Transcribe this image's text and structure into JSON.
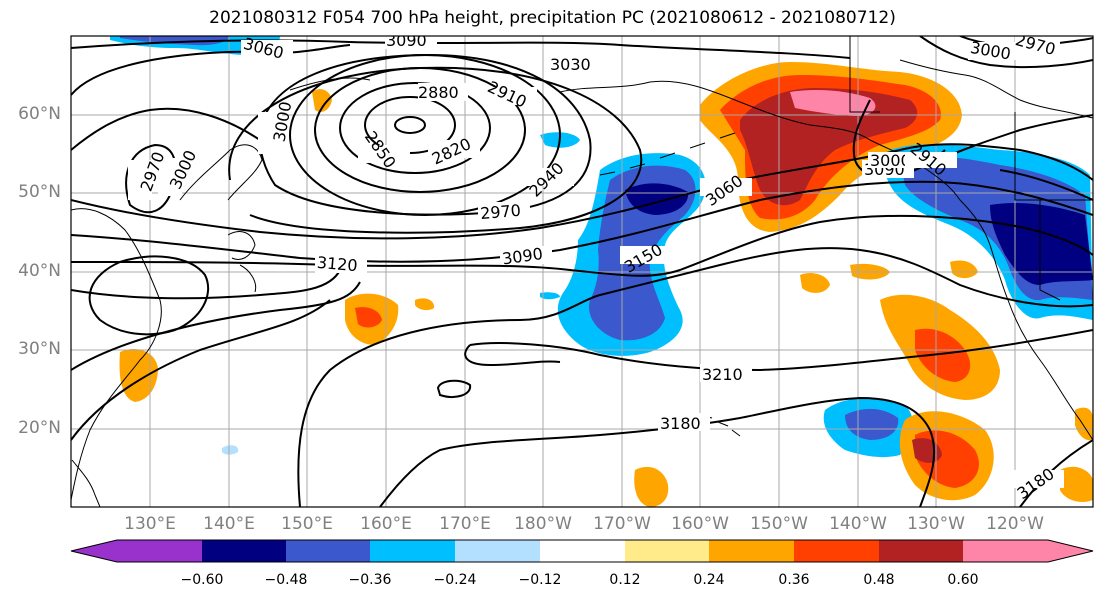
{
  "title": "2021080312 F054 700 hPa height, precipitation PC (2021080612 - 2021080712)",
  "lat_labels": [
    "60°N",
    "50°N",
    "40°N",
    "30°N",
    "20°N"
  ],
  "lon_labels": [
    "130°E",
    "140°E",
    "150°E",
    "160°E",
    "170°E",
    "180°W",
    "170°W",
    "160°W",
    "150°W",
    "140°W",
    "130°W",
    "120°W"
  ],
  "contour_labels": [
    "3090",
    "3060",
    "3030",
    "3000",
    "2970",
    "2880",
    "2910",
    "2820",
    "2850",
    "3000",
    "2940",
    "3000",
    "2970",
    "3060",
    "2970",
    "3090",
    "3120",
    "3150",
    "3090",
    "3000",
    "2910",
    "3210",
    "3180",
    "3180"
  ],
  "colorbar": {
    "tick_labels": [
      "−0.60",
      "−0.48",
      "−0.36",
      "−0.24",
      "−0.12",
      "0.12",
      "0.24",
      "0.36",
      "0.48",
      "0.60"
    ],
    "colors": [
      "#9932cc",
      "#000080",
      "#3b58cc",
      "#00bfff",
      "#b3e0ff",
      "#ffffff",
      "#ffeb8a",
      "#ffa500",
      "#ff4000",
      "#b22222",
      "#ff85a8"
    ]
  }
}
